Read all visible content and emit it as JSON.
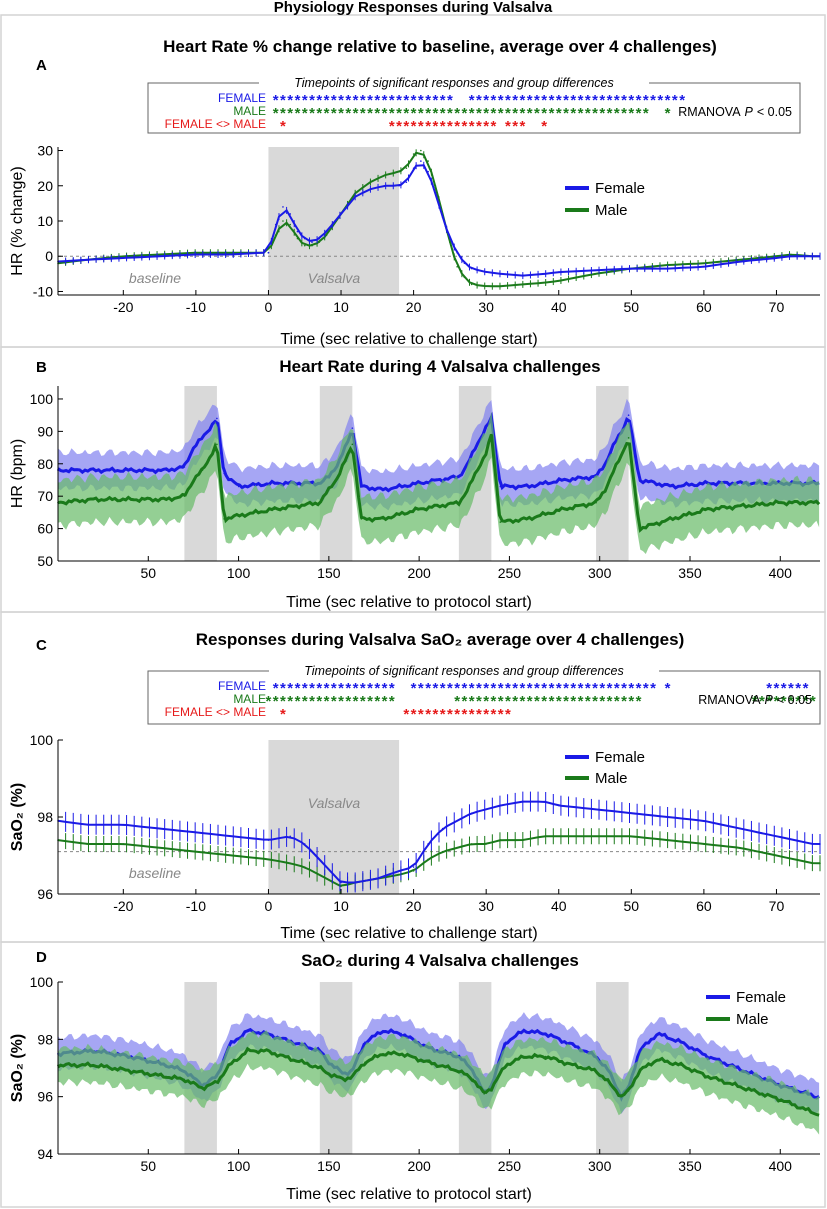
{
  "figure_title": "Physiology Responses during Valsalva",
  "colors": {
    "female": "#1a1ae6",
    "male": "#1a7a1a",
    "diff": "#e61a1a",
    "female_band": "#8080f0",
    "male_band": "#66bb66",
    "valsalva_box": "#d9d9d9"
  },
  "chart_data": [
    {
      "panel": "A",
      "type": "line",
      "title": "Heart Rate % change relative to baseline, average over 4 challenges)",
      "xlabel": "Time (sec relative to challenge start)",
      "ylabel": "HR (% change)",
      "xlim": [
        -29,
        76
      ],
      "ylim": [
        -11,
        31
      ],
      "xticks": [
        -20,
        -10,
        0,
        10,
        20,
        30,
        40,
        50,
        60,
        70
      ],
      "yticks": [
        -10,
        0,
        10,
        20,
        30
      ],
      "shaded_region": [
        0,
        18
      ],
      "region_labels": {
        "left": "baseline",
        "right": "Valsalva"
      },
      "legend": [
        "Female",
        "Male"
      ],
      "legend_position": "top-right",
      "significance_box": {
        "title": "Timepoints of significant responses and group differences",
        "rows": [
          "FEMALE",
          "MALE",
          "FEMALE <> MALE"
        ],
        "stat_label": "RMANOVA",
        "p_label": "P",
        "p_value": "< 0.05",
        "female_ranges": [
          [
            1,
            25
          ],
          [
            28,
            57
          ]
        ],
        "male_ranges": [
          [
            1,
            52
          ],
          [
            55,
            55
          ]
        ],
        "diff_ranges": [
          [
            2,
            2
          ],
          [
            17,
            21
          ],
          [
            22,
            31
          ],
          [
            33,
            35
          ],
          [
            38,
            38
          ]
        ]
      },
      "series": [
        {
          "name": "Female",
          "x": [
            -29,
            -25,
            -20,
            -15,
            -10,
            -5,
            -1,
            0,
            1,
            2,
            3,
            4,
            5,
            6,
            7,
            8,
            10,
            12,
            14,
            16,
            18,
            19,
            20,
            21,
            22,
            23,
            24,
            25,
            26,
            27,
            28,
            30,
            32,
            35,
            38,
            40,
            45,
            50,
            55,
            60,
            65,
            70,
            72,
            75
          ],
          "y": [
            -1.5,
            -1,
            -0.5,
            0,
            0.5,
            0.5,
            1,
            1,
            9,
            14,
            12,
            7,
            5,
            4,
            5,
            7,
            12,
            17,
            19,
            20,
            20,
            21,
            25,
            27,
            24,
            18,
            11,
            5,
            1,
            -2,
            -3.5,
            -4.5,
            -5,
            -5.5,
            -5,
            -4.5,
            -4,
            -3.5,
            -3.5,
            -3,
            -1.5,
            -0.5,
            0,
            0
          ]
        },
        {
          "name": "Male",
          "x": [
            -29,
            -25,
            -20,
            -15,
            -10,
            -5,
            -1,
            0,
            1,
            2,
            3,
            4,
            5,
            6,
            7,
            8,
            10,
            12,
            14,
            16,
            18,
            19,
            20,
            21,
            22,
            23,
            24,
            25,
            26,
            27,
            28,
            30,
            32,
            35,
            38,
            40,
            45,
            50,
            55,
            60,
            65,
            70,
            72,
            75
          ],
          "y": [
            -2,
            -1,
            0,
            0.5,
            1,
            1,
            1,
            1,
            6,
            10,
            9,
            5,
            3,
            3,
            4,
            6,
            12,
            18,
            21,
            23,
            24,
            25,
            29,
            30,
            27,
            20,
            12,
            4,
            -3,
            -6,
            -8,
            -8.5,
            -8.5,
            -8,
            -7.5,
            -7,
            -5,
            -3.5,
            -2.5,
            -2,
            -1,
            0,
            0.5,
            0
          ]
        }
      ]
    },
    {
      "panel": "B",
      "type": "area",
      "title": "Heart Rate during 4 Valsalva challenges",
      "xlabel": "Time (sec relative to protocol start)",
      "ylabel": "HR (bpm)",
      "xlim": [
        0,
        422
      ],
      "ylim": [
        50,
        104
      ],
      "xticks": [
        50,
        100,
        150,
        200,
        250,
        300,
        350,
        400
      ],
      "yticks": [
        50,
        60,
        70,
        80,
        90,
        100
      ],
      "shaded_regions": [
        [
          70,
          88
        ],
        [
          145,
          163
        ],
        [
          222,
          240
        ],
        [
          298,
          316
        ]
      ],
      "series": [
        {
          "name": "Female",
          "x": [
            0,
            20,
            40,
            60,
            70,
            75,
            80,
            88,
            92,
            100,
            120,
            145,
            150,
            155,
            160,
            163,
            168,
            180,
            200,
            222,
            227,
            232,
            237,
            240,
            245,
            260,
            280,
            298,
            303,
            308,
            313,
            316,
            322,
            340,
            360,
            380,
            400,
            420
          ],
          "y": [
            78,
            78,
            78,
            78,
            79,
            85,
            88,
            94,
            77,
            73,
            74,
            74,
            76,
            80,
            86,
            91,
            73,
            72,
            74,
            76,
            80,
            86,
            91,
            94,
            73,
            73,
            75,
            76,
            80,
            86,
            91,
            95,
            75,
            73,
            74,
            74,
            74,
            74
          ],
          "band": 5.5
        },
        {
          "name": "Male",
          "x": [
            0,
            20,
            40,
            60,
            70,
            75,
            80,
            88,
            92,
            100,
            120,
            145,
            150,
            155,
            160,
            163,
            168,
            180,
            200,
            222,
            227,
            232,
            237,
            240,
            245,
            260,
            280,
            298,
            303,
            308,
            313,
            316,
            322,
            340,
            360,
            380,
            400,
            420
          ],
          "y": [
            68,
            69,
            69,
            69,
            70,
            75,
            78,
            86,
            63,
            64,
            66,
            68,
            72,
            76,
            82,
            86,
            63,
            63,
            66,
            68,
            72,
            78,
            83,
            89,
            62,
            63,
            66,
            68,
            72,
            78,
            84,
            88,
            60,
            63,
            66,
            67,
            68,
            68
          ],
          "band": 7
        }
      ]
    },
    {
      "panel": "C",
      "type": "line",
      "title": "Responses during Valsalva SaO₂ average over 4 challenges)",
      "xlabel": "Time (sec relative to challenge start)",
      "ylabel": "SaO₂ (%)",
      "xlim": [
        -29,
        76
      ],
      "ylim": [
        96,
        100
      ],
      "xticks": [
        -20,
        -10,
        0,
        10,
        20,
        30,
        40,
        50,
        60,
        70
      ],
      "yticks": [
        96,
        98,
        100
      ],
      "shaded_region": [
        0,
        18
      ],
      "baseline_value": 97.1,
      "region_labels": {
        "left": "baseline",
        "right": "Valsalva"
      },
      "legend": [
        "Female",
        "Male"
      ],
      "legend_position": "top-right",
      "significance_box": {
        "title": "Timepoints of significant responses and group differences",
        "rows": [
          "FEMALE",
          "MALE",
          "FEMALE <> MALE"
        ],
        "stat_label": "RMANOVA",
        "p_label": "P",
        "p_value": "< 0.05",
        "female_ranges": [
          [
            1,
            17
          ],
          [
            20,
            53
          ],
          [
            55,
            55
          ],
          [
            69,
            74
          ]
        ],
        "male_ranges": [
          [
            0,
            17
          ],
          [
            26,
            51
          ],
          [
            67,
            75
          ]
        ],
        "diff_ranges": [
          [
            2,
            2
          ],
          [
            19,
            33
          ]
        ]
      },
      "series": [
        {
          "name": "Female",
          "x": [
            -29,
            -25,
            -20,
            -15,
            -10,
            -5,
            0,
            3,
            5,
            8,
            10,
            12,
            15,
            18,
            20,
            22,
            24,
            26,
            28,
            30,
            32,
            35,
            38,
            40,
            45,
            50,
            55,
            60,
            65,
            70,
            75,
            76
          ],
          "y": [
            97.9,
            97.8,
            97.8,
            97.7,
            97.6,
            97.5,
            97.4,
            97.5,
            97.3,
            96.7,
            96.3,
            96.3,
            96.4,
            96.6,
            96.7,
            97.3,
            97.7,
            97.9,
            98.1,
            98.2,
            98.3,
            98.4,
            98.4,
            98.3,
            98.2,
            98.1,
            98.0,
            97.9,
            97.7,
            97.5,
            97.3,
            97.3
          ]
        },
        {
          "name": "Male",
          "x": [
            -29,
            -25,
            -20,
            -15,
            -10,
            -5,
            0,
            3,
            5,
            8,
            10,
            12,
            15,
            18,
            20,
            22,
            24,
            26,
            28,
            30,
            32,
            35,
            38,
            40,
            45,
            50,
            55,
            60,
            65,
            70,
            75,
            76
          ],
          "y": [
            97.4,
            97.3,
            97.3,
            97.2,
            97.1,
            97.0,
            96.9,
            96.8,
            96.7,
            96.4,
            96.2,
            96.3,
            96.4,
            96.5,
            96.6,
            96.9,
            97.1,
            97.2,
            97.3,
            97.3,
            97.4,
            97.4,
            97.5,
            97.5,
            97.5,
            97.5,
            97.4,
            97.3,
            97.2,
            97.0,
            96.8,
            96.8
          ]
        }
      ]
    },
    {
      "panel": "D",
      "type": "area",
      "title": "SaO₂ during 4 Valsalva challenges",
      "xlabel": "Time (sec relative to protocol start)",
      "ylabel": "SaO₂ (%)",
      "xlim": [
        0,
        422
      ],
      "ylim": [
        94,
        100
      ],
      "xticks": [
        50,
        100,
        150,
        200,
        250,
        300,
        350,
        400
      ],
      "yticks": [
        94,
        96,
        98,
        100
      ],
      "shaded_regions": [
        [
          70,
          88
        ],
        [
          145,
          163
        ],
        [
          222,
          240
        ],
        [
          298,
          316
        ]
      ],
      "legend": [
        "Female",
        "Male"
      ],
      "legend_position": "top-right",
      "series": [
        {
          "name": "Female",
          "x": [
            0,
            20,
            40,
            60,
            70,
            80,
            88,
            95,
            105,
            115,
            130,
            145,
            150,
            158,
            163,
            170,
            180,
            190,
            205,
            222,
            230,
            236,
            240,
            248,
            258,
            270,
            285,
            298,
            305,
            312,
            316,
            322,
            332,
            345,
            360,
            380,
            400,
            420
          ],
          "y": [
            97.5,
            97.6,
            97.4,
            97.1,
            96.9,
            96.4,
            96.7,
            97.8,
            98.3,
            98.2,
            97.9,
            97.6,
            97.2,
            96.8,
            96.9,
            97.9,
            98.3,
            98.2,
            97.7,
            97.4,
            96.9,
            96.1,
            96.4,
            97.9,
            98.3,
            98.2,
            97.8,
            97.4,
            96.9,
            96.0,
            96.3,
            97.6,
            98.2,
            97.9,
            97.4,
            96.9,
            96.4,
            96.0
          ],
          "band": 0.55
        },
        {
          "name": "Male",
          "x": [
            0,
            20,
            40,
            60,
            70,
            80,
            88,
            95,
            105,
            115,
            130,
            145,
            150,
            158,
            163,
            170,
            180,
            190,
            205,
            222,
            230,
            236,
            240,
            248,
            258,
            270,
            285,
            298,
            305,
            312,
            316,
            322,
            332,
            345,
            360,
            380,
            400,
            420
          ],
          "y": [
            97.1,
            97.1,
            96.9,
            96.7,
            96.6,
            96.3,
            96.5,
            97.1,
            97.6,
            97.6,
            97.3,
            97.0,
            96.8,
            96.6,
            96.7,
            97.2,
            97.5,
            97.5,
            97.2,
            96.9,
            96.6,
            96.1,
            96.3,
            97.1,
            97.4,
            97.4,
            97.1,
            96.9,
            96.5,
            96.0,
            96.2,
            96.9,
            97.3,
            97.1,
            96.7,
            96.3,
            95.9,
            95.4
          ],
          "band": 0.6
        }
      ]
    }
  ]
}
